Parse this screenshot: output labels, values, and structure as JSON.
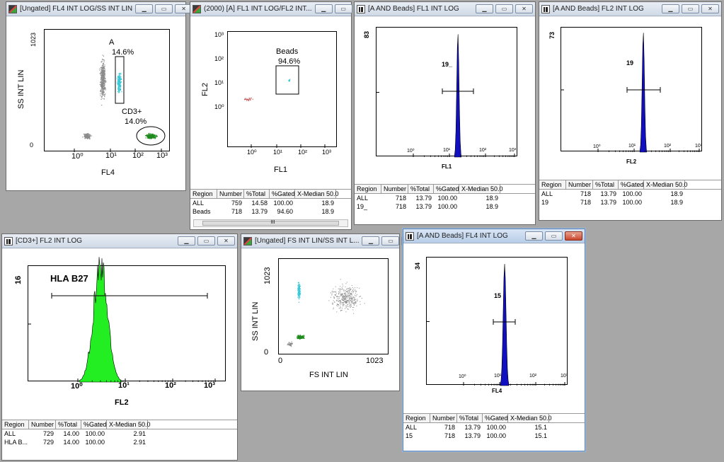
{
  "windows": {
    "w1": {
      "title": "[Ungated] FL4 INT LOG/SS INT LIN",
      "y_label": "SS INT LIN",
      "x_label": "FL4",
      "y_top": "1023",
      "y_bottom": "0",
      "x_ticks": [
        "10⁰",
        "10¹",
        "10²",
        "10³"
      ],
      "gate_a": {
        "name": "A",
        "pct": "14.6%"
      },
      "gate_cd3": {
        "name": "CD3+",
        "pct": "14.0%"
      }
    },
    "w2": {
      "title": "(2000) [A] FL1 INT LOG/FL2 INT...",
      "y_label": "FL2",
      "x_label": "FL1",
      "y_ticks": [
        "10³",
        "10²",
        "10¹",
        "10⁰"
      ],
      "x_ticks": [
        "10⁰",
        "10¹",
        "10²",
        "10³"
      ],
      "gate": {
        "name": "Beads",
        "pct": "94.6%"
      },
      "stats": {
        "headers": [
          "Region",
          "Number",
          "%Total",
          "%Gated",
          "X-Median 50.0"
        ],
        "rows": [
          [
            "ALL",
            "759",
            "14.58",
            "100.00",
            "18.9"
          ],
          [
            "Beads",
            "718",
            "13.79",
            "94.60",
            "18.9"
          ]
        ]
      },
      "scroll_glyph": "III"
    },
    "w3": {
      "title": "[A AND Beads] FL1 INT LOG",
      "y_max": "83",
      "x_label": "FL1",
      "marker": "19_",
      "x_ticks": [
        "10⁰",
        "10¹",
        "10²",
        "10³"
      ],
      "stats": {
        "headers": [
          "Region",
          "Number",
          "%Total",
          "%Gated",
          "X-Median 50.0"
        ],
        "rows": [
          [
            "ALL",
            "718",
            "13.79",
            "100.00",
            "18.9"
          ],
          [
            "19_",
            "718",
            "13.79",
            "100.00",
            "18.9"
          ]
        ]
      }
    },
    "w4": {
      "title": "[A AND Beads] FL2 INT LOG",
      "y_max": "73",
      "x_label": "FL2",
      "marker": "19",
      "x_ticks": [
        "10⁰",
        "10¹",
        "10²",
        "10³"
      ],
      "stats": {
        "headers": [
          "Region",
          "Number",
          "%Total",
          "%Gated",
          "X-Median 50.0"
        ],
        "rows": [
          [
            "ALL",
            "718",
            "13.79",
            "100.00",
            "18.9"
          ],
          [
            "19",
            "718",
            "13.79",
            "100.00",
            "18.9"
          ]
        ]
      }
    },
    "w5": {
      "title": "[CD3+] FL2 INT LOG",
      "y_max": "16",
      "x_label": "FL2",
      "marker": "HLA B27",
      "x_ticks": [
        "10⁰",
        "10¹",
        "10²",
        "10³"
      ],
      "stats": {
        "headers": [
          "Region",
          "Number",
          "%Total",
          "%Gated",
          "X-Median 50.0"
        ],
        "rows": [
          [
            "ALL",
            "729",
            "14.00",
            "100.00",
            "2.91"
          ],
          [
            "HLA B...",
            "729",
            "14.00",
            "100.00",
            "2.91"
          ]
        ]
      }
    },
    "w6": {
      "title": "[Ungated] FS INT LIN/SS INT L...",
      "y_label": "SS INT LIN",
      "x_label": "FS INT LIN",
      "y_top": "1023",
      "y_bottom": "0",
      "x_left": "0",
      "x_right": "1023"
    },
    "w7": {
      "title": "[A AND Beads] FL4 INT LOG",
      "y_max": "34",
      "x_label": "FL4",
      "marker": "15",
      "x_ticks": [
        "10⁰",
        "10¹",
        "10²",
        "10³"
      ],
      "stats": {
        "headers": [
          "Region",
          "Number",
          "%Total",
          "%Gated",
          "X-Median 50.0"
        ],
        "rows": [
          [
            "ALL",
            "718",
            "13.79",
            "100.00",
            "15.1"
          ],
          [
            "15",
            "718",
            "13.79",
            "100.00",
            "15.1"
          ]
        ]
      }
    }
  },
  "buttons": {
    "minimize": "▁",
    "maximize": "▭",
    "close": "✕"
  },
  "colors": {
    "desktop": "#a7a7a7",
    "cyan": "#38c8d8",
    "green": "#1e8a1e",
    "bright_green": "#22ee22",
    "blue": "#1010c0",
    "gray_dots": "#8a8a8a",
    "red_dots": "#c04040"
  }
}
